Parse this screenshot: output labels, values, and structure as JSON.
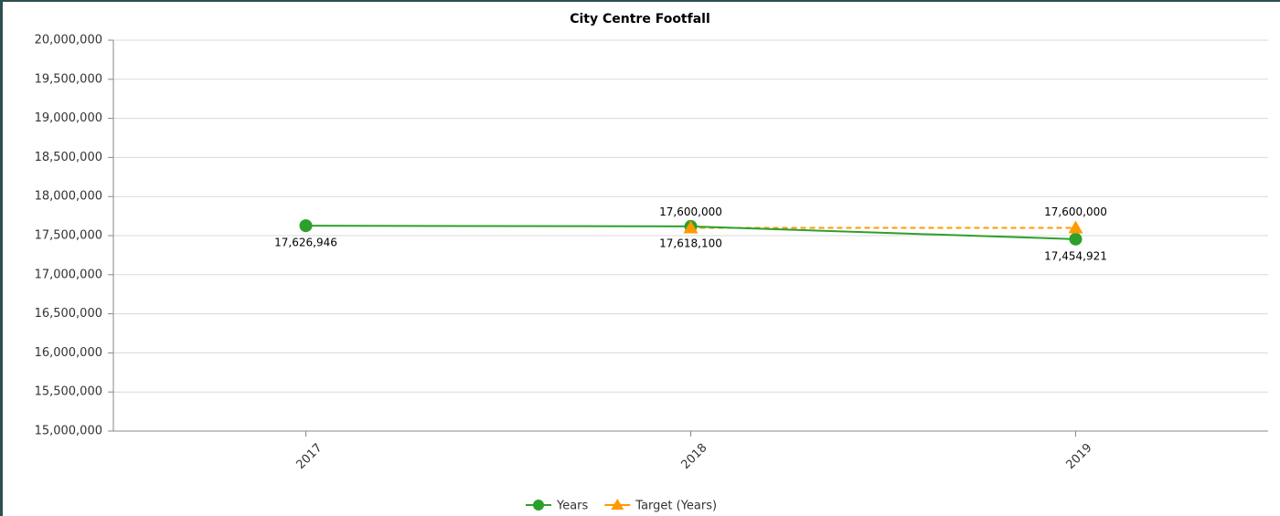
{
  "chart_data": {
    "type": "line",
    "title": "City Centre Footfall",
    "categories": [
      "2017",
      "2018",
      "2019"
    ],
    "series": [
      {
        "name": "Years",
        "color": "#2ca02c",
        "marker": "circle",
        "dashed": false,
        "values": [
          17626946,
          17618100,
          17454921
        ],
        "value_labels": [
          "17,626,946",
          "17,618,100",
          "17,454,921"
        ],
        "label_position": "below"
      },
      {
        "name": "Target (Years)",
        "color": "#ff9900",
        "marker": "triangle",
        "dashed": true,
        "values": [
          null,
          17600000,
          17600000
        ],
        "value_labels": [
          null,
          "17,600,000",
          "17,600,000"
        ],
        "label_position": "above"
      }
    ],
    "ylim": [
      15000000,
      20000000
    ],
    "yticks": [
      {
        "value": 15000000,
        "label": "15,000,000"
      },
      {
        "value": 15500000,
        "label": "15,500,000"
      },
      {
        "value": 16000000,
        "label": "16,000,000"
      },
      {
        "value": 16500000,
        "label": "16,500,000"
      },
      {
        "value": 17000000,
        "label": "17,000,000"
      },
      {
        "value": 17500000,
        "label": "17,500,000"
      },
      {
        "value": 18000000,
        "label": "18,000,000"
      },
      {
        "value": 18500000,
        "label": "18,500,000"
      },
      {
        "value": 19000000,
        "label": "19,000,000"
      },
      {
        "value": 19500000,
        "label": "19,500,000"
      },
      {
        "value": 20000000,
        "label": "20,000,000"
      }
    ],
    "grid": true,
    "legend": "bottom"
  }
}
